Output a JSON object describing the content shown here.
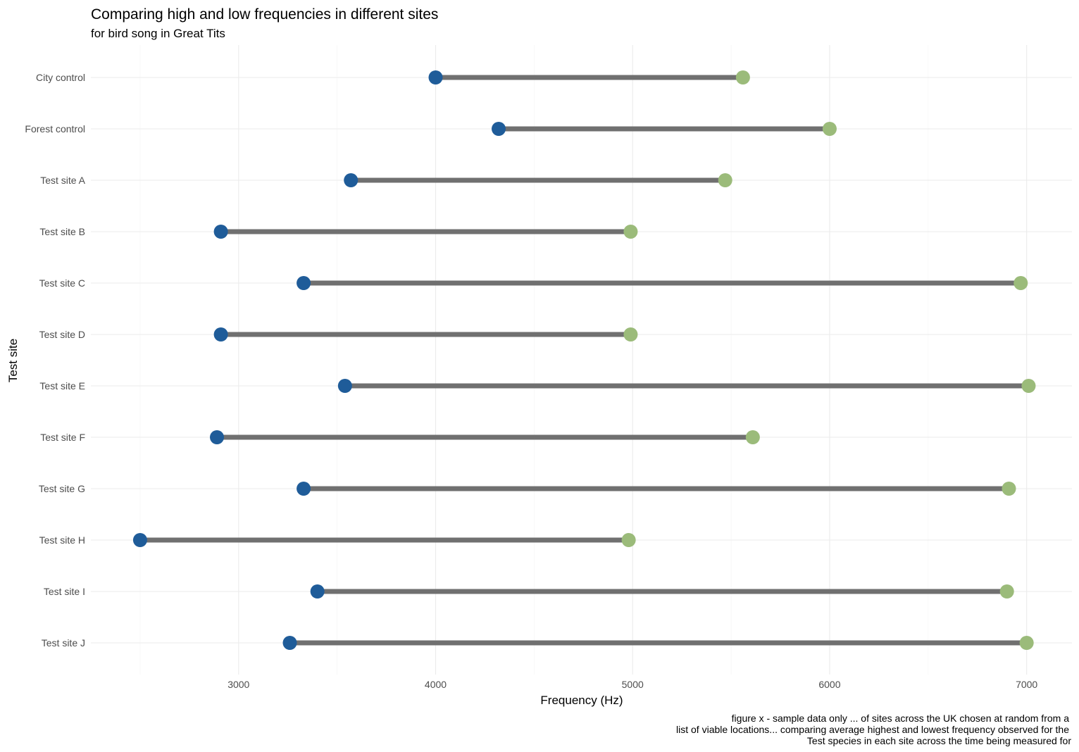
{
  "chart_data": {
    "type": "dumbbell",
    "title": "Comparing high and low frequencies in different sites",
    "subtitle": "for bird song in Great Tits",
    "xlabel": "Frequency (Hz)",
    "ylabel": "Test site",
    "caption": [
      "figure x - sample data only ... of sites across the UK chosen at random from a",
      "list of viable locations... comparing average highest and lowest frequency observed for the",
      "Test species in each site across the time being measured for"
    ],
    "xlim": [
      2250,
      7230
    ],
    "x_ticks": [
      3000,
      4000,
      5000,
      6000,
      7000
    ],
    "x_tick_labels": [
      "3000",
      "4000",
      "5000",
      "6000",
      "7000"
    ],
    "categories": [
      "City control",
      "Forest control",
      "Test site A",
      "Test site B",
      "Test site C",
      "Test site D",
      "Test site E",
      "Test site F",
      "Test site G",
      "Test site H",
      "Test site I",
      "Test site J"
    ],
    "low": [
      4000,
      4320,
      3570,
      2910,
      3330,
      2910,
      3540,
      2890,
      3330,
      2500,
      3400,
      3260
    ],
    "high": [
      5560,
      6000,
      5470,
      4990,
      6970,
      4990,
      7010,
      5610,
      6910,
      4980,
      6900,
      7000
    ],
    "colors": {
      "low": "#1f5c99",
      "high": "#9bbb7a",
      "segment": "#707070"
    },
    "grid": true,
    "legend": "none"
  }
}
